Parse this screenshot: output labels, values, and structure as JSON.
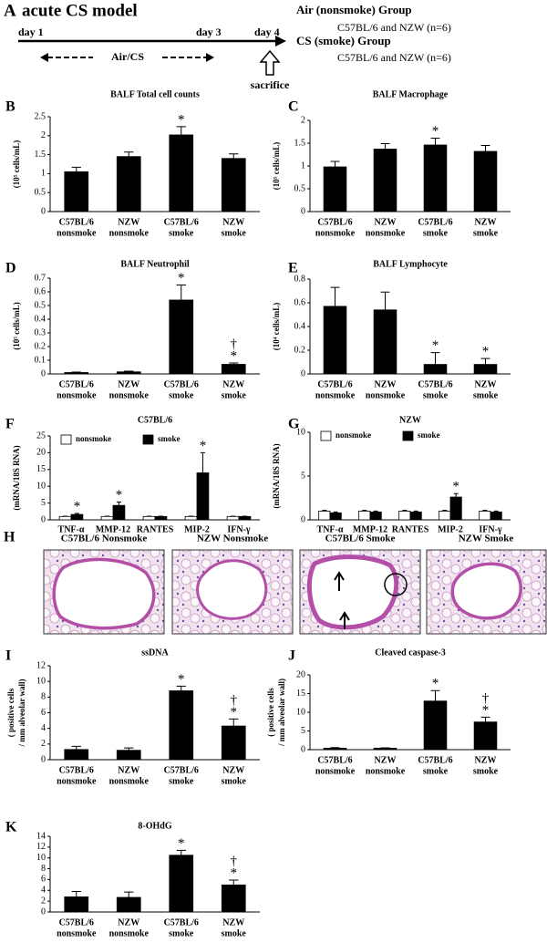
{
  "panel_a": {
    "letter": "A",
    "title": "acute CS model",
    "days": [
      "day 1",
      "day 3",
      "day 4"
    ],
    "period": "Air/CS",
    "event": "sacrifice",
    "groups": [
      {
        "name": "Air (nonsmoke) Group",
        "detail": "C57BL/6 and NZW (n=6)"
      },
      {
        "name": "CS (smoke) Group",
        "detail": "C57BL/6 and NZW (n=6)"
      }
    ]
  },
  "panel_h": {
    "letter": "H",
    "images": [
      {
        "label": "C57BL/6 Nonsmoke"
      },
      {
        "label": "NZW Nonsmoke"
      },
      {
        "label": "C57BL/6 Smoke"
      },
      {
        "label": "NZW Smoke"
      }
    ]
  },
  "chart_data": [
    {
      "type": "bar",
      "panel": "B",
      "title": "BALF Total cell counts",
      "y_label_lines": [
        "(10⁵ cells/mL)"
      ],
      "categories": [
        [
          "C57BL/6",
          "nonsmoke"
        ],
        [
          "NZW",
          "nonsmoke"
        ],
        [
          "C57BL/6",
          "smoke"
        ],
        [
          "NZW",
          "smoke"
        ]
      ],
      "values": [
        1.05,
        1.45,
        2.02,
        1.4
      ],
      "errors": [
        0.12,
        0.12,
        0.22,
        0.12
      ],
      "annotations": [
        null,
        null,
        [
          "*"
        ],
        null
      ],
      "color": "#000000",
      "ylim": [
        0,
        2.5
      ],
      "yticks": [
        0,
        0.5,
        1,
        1.5,
        2,
        2.5
      ]
    },
    {
      "type": "bar",
      "panel": "C",
      "title": "BALF Macrophage",
      "y_label_lines": [
        "(10⁵ cells/mL)"
      ],
      "categories": [
        [
          "C57BL/6",
          "nonsmoke"
        ],
        [
          "NZW",
          "nonsmoke"
        ],
        [
          "C57BL/6",
          "smoke"
        ],
        [
          "NZW",
          "smoke"
        ]
      ],
      "values": [
        0.98,
        1.37,
        1.46,
        1.32
      ],
      "errors": [
        0.12,
        0.12,
        0.15,
        0.13
      ],
      "annotations": [
        null,
        null,
        [
          "*"
        ],
        null
      ],
      "color": "#000000",
      "ylim": [
        0,
        2
      ],
      "yticks": [
        0,
        0.5,
        1,
        1.5,
        2
      ]
    },
    {
      "type": "bar",
      "panel": "D",
      "title": "BALF Neutrophil",
      "y_label_lines": [
        "(10⁵ cells/mL)"
      ],
      "categories": [
        [
          "C57BL/6",
          "nonsmoke"
        ],
        [
          "NZW",
          "nonsmoke"
        ],
        [
          "C57BL/6",
          "smoke"
        ],
        [
          "NZW",
          "smoke"
        ]
      ],
      "values": [
        0.01,
        0.015,
        0.54,
        0.07
      ],
      "errors": [
        0.003,
        0.005,
        0.11,
        0.01
      ],
      "annotations": [
        null,
        null,
        [
          "*"
        ],
        [
          "†",
          "*"
        ]
      ],
      "color": "#000000",
      "ylim": [
        0,
        0.7
      ],
      "yticks": [
        0,
        0.1,
        0.2,
        0.3,
        0.4,
        0.5,
        0.6,
        0.7
      ]
    },
    {
      "type": "bar",
      "panel": "E",
      "title": "BALF Lymphocyte",
      "y_label_lines": [
        "(10⁴ cells/mL)"
      ],
      "categories": [
        [
          "C57BL/6",
          "nonsmoke"
        ],
        [
          "NZW",
          "nonsmoke"
        ],
        [
          "C57BL/6",
          "smoke"
        ],
        [
          "NZW",
          "smoke"
        ]
      ],
      "values": [
        0.57,
        0.54,
        0.08,
        0.08
      ],
      "errors": [
        0.16,
        0.15,
        0.1,
        0.05
      ],
      "annotations": [
        null,
        null,
        [
          "*"
        ],
        [
          "*"
        ]
      ],
      "color": "#000000",
      "ylim": [
        0,
        0.8
      ],
      "yticks": [
        0,
        0.2,
        0.4,
        0.6,
        0.8
      ]
    },
    {
      "type": "bar",
      "panel": "F",
      "title": "C57BL/6",
      "y_label_lines": [
        "(mRNA/18S RNA)"
      ],
      "categories": [
        "TNF-α",
        "MMP-12",
        "RANTES",
        "MIP-2",
        "IFN-γ"
      ],
      "series": [
        {
          "name": "nonsmoke",
          "color": "#ffffff",
          "values": [
            1,
            1,
            1,
            1,
            1
          ],
          "errors": [
            0.1,
            0.1,
            0.1,
            0.1,
            0.1
          ]
        },
        {
          "name": "smoke",
          "color": "#000000",
          "values": [
            1.6,
            4.3,
            1,
            14,
            1
          ],
          "errors": [
            0.3,
            1,
            0.1,
            6,
            0.1
          ],
          "annotations": [
            [
              "*"
            ],
            [
              "*"
            ],
            null,
            [
              "*"
            ],
            null
          ]
        }
      ],
      "ylim": [
        0,
        25
      ],
      "yticks": [
        0,
        5,
        10,
        15,
        20,
        25
      ]
    },
    {
      "type": "bar",
      "panel": "G",
      "title": "NZW",
      "y_label_lines": [
        "(mRNA/18S RNA)"
      ],
      "categories": [
        "TNF-α",
        "MMP-12",
        "RANTES",
        "MIP-2",
        "IFN-γ"
      ],
      "series": [
        {
          "name": "nonsmoke",
          "color": "#ffffff",
          "values": [
            1,
            1,
            1,
            1,
            1
          ],
          "errors": [
            0.1,
            0.1,
            0.1,
            0.1,
            0.1
          ]
        },
        {
          "name": "smoke",
          "color": "#000000",
          "values": [
            0.8,
            0.9,
            0.9,
            2.6,
            0.9
          ],
          "errors": [
            0.1,
            0.1,
            0.1,
            0.4,
            0.1
          ],
          "annotations": [
            null,
            null,
            null,
            [
              "*"
            ],
            null
          ]
        }
      ],
      "ylim": [
        0,
        10
      ],
      "yticks": [
        0,
        5,
        10
      ]
    },
    {
      "type": "bar",
      "panel": "I",
      "title": "ssDNA",
      "y_label_lines": [
        "( positive cells",
        "/ mm alveolar wall)"
      ],
      "categories": [
        [
          "C57BL/6",
          "nonsmoke"
        ],
        [
          "NZW",
          "nonsmoke"
        ],
        [
          "C57BL/6",
          "smoke"
        ],
        [
          "NZW",
          "smoke"
        ]
      ],
      "values": [
        1.3,
        1.2,
        8.8,
        4.3
      ],
      "errors": [
        0.4,
        0.3,
        0.6,
        0.9
      ],
      "annotations": [
        null,
        null,
        [
          "*"
        ],
        [
          "†",
          "*"
        ]
      ],
      "color": "#000000",
      "ylim": [
        0,
        12
      ],
      "yticks": [
        0,
        2,
        4,
        6,
        8,
        10,
        12
      ]
    },
    {
      "type": "bar",
      "panel": "J",
      "title": "Cleaved caspase-3",
      "y_label_lines": [
        "( positive cells",
        "/ mm alveolar wall)"
      ],
      "categories": [
        [
          "C57BL/6",
          "nonsmoke"
        ],
        [
          "NZW",
          "nonsmoke"
        ],
        [
          "C57BL/6",
          "smoke"
        ],
        [
          "NZW",
          "smoke"
        ]
      ],
      "values": [
        0.4,
        0.4,
        13,
        7.4
      ],
      "errors": [
        0.15,
        0.1,
        2.8,
        1.3
      ],
      "annotations": [
        null,
        null,
        [
          "*"
        ],
        [
          "†",
          "*"
        ]
      ],
      "color": "#000000",
      "ylim": [
        0,
        20
      ],
      "yticks": [
        0,
        5,
        10,
        15,
        20
      ]
    },
    {
      "type": "bar",
      "panel": "K",
      "title": "8-OHdG",
      "y_label_lines": [],
      "categories": [
        [
          "C57BL/6",
          "nonsmoke"
        ],
        [
          "NZW",
          "nonsmoke"
        ],
        [
          "C57BL/6",
          "smoke"
        ],
        [
          "NZW",
          "smoke"
        ]
      ],
      "values": [
        2.8,
        2.7,
        10.5,
        5.0
      ],
      "errors": [
        1,
        1,
        0.9,
        0.9
      ],
      "annotations": [
        null,
        null,
        [
          "*"
        ],
        [
          "†",
          "*"
        ]
      ],
      "color": "#000000",
      "ylim": [
        0,
        14
      ],
      "yticks": [
        0,
        2,
        4,
        6,
        8,
        10,
        12,
        14
      ]
    }
  ]
}
